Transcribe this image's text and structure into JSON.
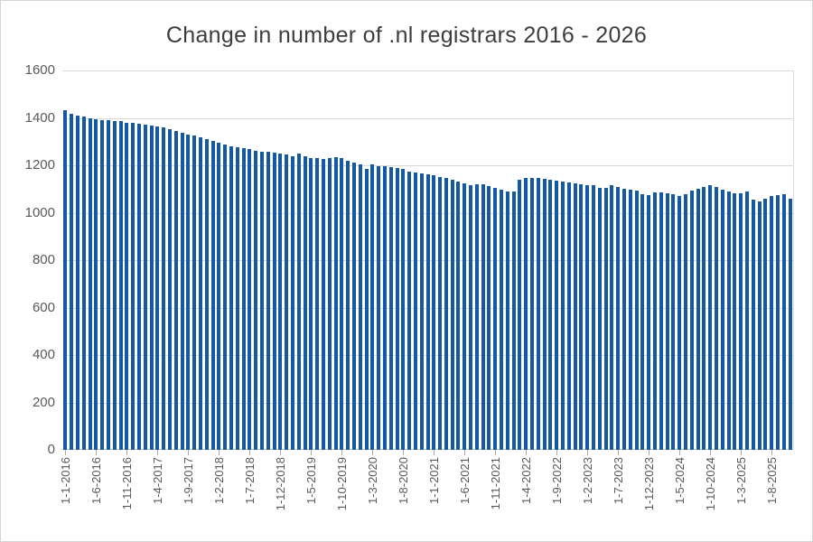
{
  "frame": {
    "background": "#ffffff",
    "border_color": "#d6d6d6"
  },
  "chart_data": {
    "type": "bar",
    "title": "Change in number of .nl registrars 2016 - 2026",
    "xlabel": "",
    "ylabel": "",
    "ylim": [
      0,
      1600
    ],
    "ytick_step": 200,
    "ytick_labels": [
      "1600",
      "1400",
      "1200",
      "1000",
      "800",
      "600",
      "400",
      "200",
      "0"
    ],
    "grid": "horizontal",
    "legend": "none",
    "bar_color": "#1659a3",
    "grid_color": "#d9d9d9",
    "tick_label_color": "#595959",
    "title_color": "#3d3d3d",
    "x_start": "1-1-2016",
    "x_frequency": "monthly",
    "xtick_every": 5,
    "xtick_labels": [
      "1-1-2016",
      "1-6-2016",
      "1-11-2016",
      "1-4-2017",
      "1-9-2017",
      "1-2-2018",
      "1-7-2018",
      "1-12-2018",
      "1-5-2019",
      "1-10-2019",
      "1-3-2020",
      "1-8-2020",
      "1-1-2021",
      "1-6-2021",
      "1-11-2021",
      "1-4-2022",
      "1-9-2022",
      "1-2-2023",
      "1-7-2023",
      "1-12-2023",
      "1-5-2024",
      "1-10-2024",
      "1-3-2025",
      "1-8-2025"
    ],
    "values": [
      1432,
      1417,
      1408,
      1405,
      1398,
      1394,
      1392,
      1389,
      1387,
      1385,
      1381,
      1378,
      1375,
      1372,
      1368,
      1365,
      1360,
      1352,
      1345,
      1338,
      1330,
      1324,
      1319,
      1311,
      1302,
      1294,
      1286,
      1281,
      1277,
      1273,
      1268,
      1262,
      1259,
      1256,
      1252,
      1249,
      1244,
      1240,
      1249,
      1237,
      1232,
      1229,
      1227,
      1230,
      1233,
      1230,
      1221,
      1211,
      1202,
      1183,
      1202,
      1198,
      1196,
      1193,
      1190,
      1183,
      1173,
      1171,
      1165,
      1161,
      1158,
      1152,
      1146,
      1140,
      1130,
      1122,
      1117,
      1119,
      1121,
      1112,
      1106,
      1096,
      1088,
      1090,
      1138,
      1145,
      1147,
      1145,
      1143,
      1140,
      1137,
      1132,
      1127,
      1123,
      1120,
      1118,
      1115,
      1106,
      1103,
      1117,
      1109,
      1100,
      1096,
      1093,
      1080,
      1075,
      1086,
      1086,
      1081,
      1078,
      1072,
      1080,
      1095,
      1102,
      1110,
      1115,
      1109,
      1096,
      1091,
      1083,
      1081,
      1088,
      1055,
      1049,
      1058,
      1070,
      1074,
      1078,
      1058
    ]
  }
}
